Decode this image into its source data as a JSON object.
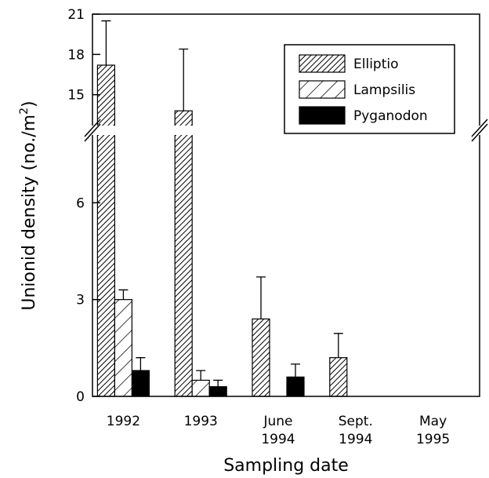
{
  "chart_data": {
    "type": "bar",
    "x_label": "Sampling date",
    "y_label": [
      "Unionid density (no./m",
      "2",
      ")"
    ],
    "categories": [
      [
        "1992"
      ],
      [
        "1993"
      ],
      [
        "June",
        "1994"
      ],
      [
        "Sept.",
        "1994"
      ],
      [
        "May",
        "1995"
      ]
    ],
    "series": [
      {
        "name": "Elliptio",
        "color": "#000000",
        "hatch": "dense",
        "values": [
          17.2,
          13.8,
          2.4,
          1.2,
          0
        ],
        "errors": [
          3.3,
          4.6,
          1.3,
          0.75,
          null
        ]
      },
      {
        "name": "Lampsilis",
        "color": "#000000",
        "hatch": "sparse",
        "values": [
          3.0,
          0.5,
          0,
          0,
          0
        ],
        "errors": [
          0.3,
          0.3,
          null,
          null,
          null
        ]
      },
      {
        "name": "Pyganodon",
        "color": "#000000",
        "hatch": "solid",
        "values": [
          0.8,
          0.3,
          0.6,
          0,
          0
        ],
        "errors": [
          0.4,
          0.2,
          0.4,
          null,
          null
        ]
      }
    ],
    "ylim": [
      0,
      21
    ],
    "axis_break": [
      8.1,
      12.7
    ],
    "yticks": [
      0,
      3,
      6,
      15,
      18,
      21
    ],
    "legend": "upper right"
  }
}
